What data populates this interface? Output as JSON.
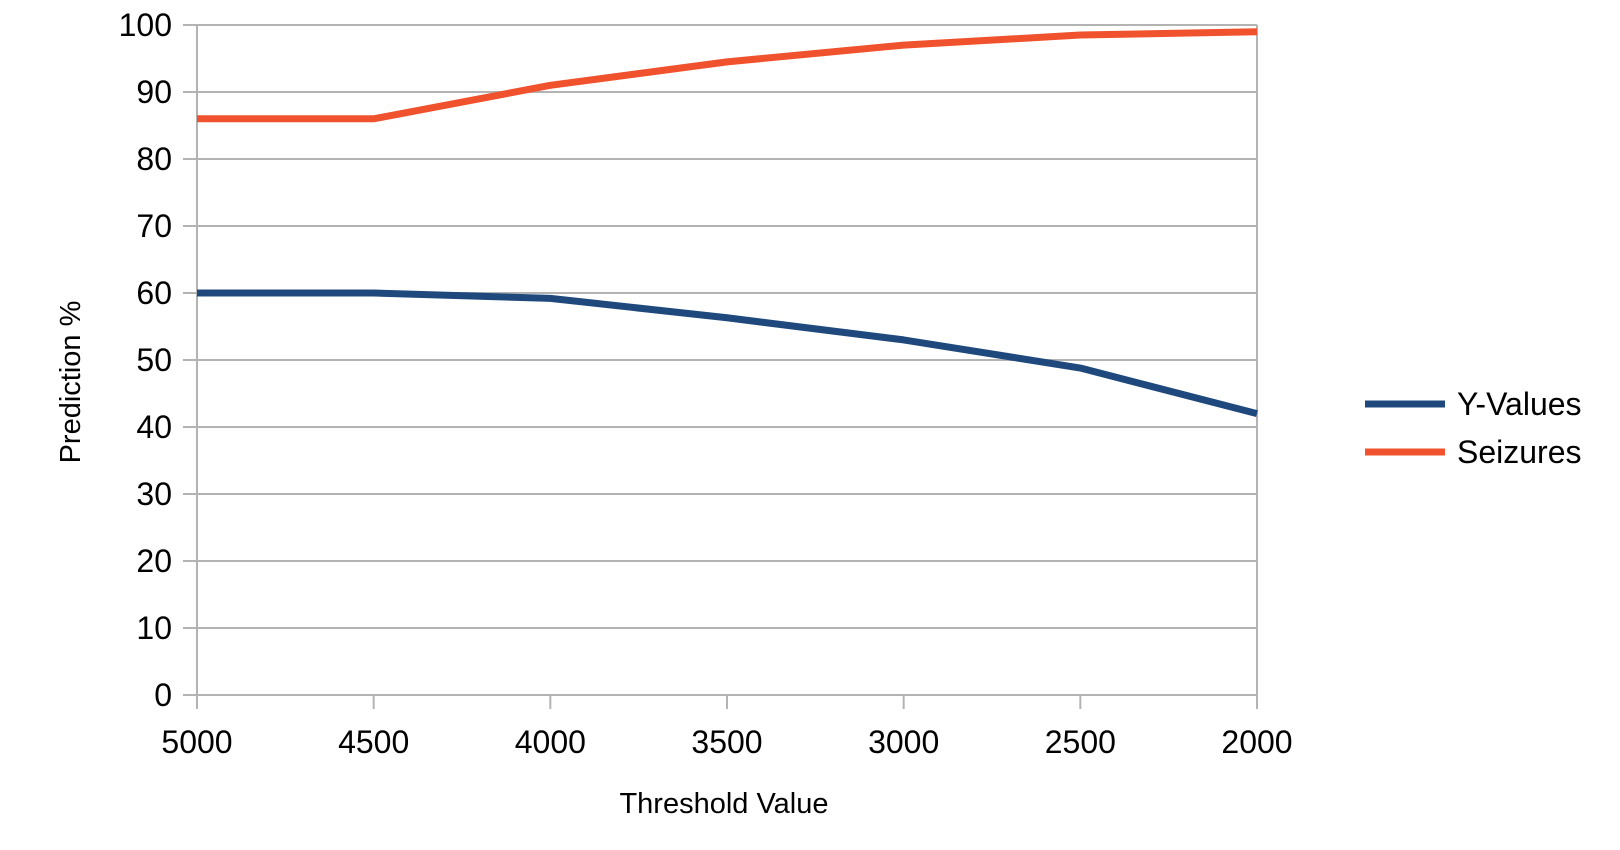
{
  "chart_data": {
    "type": "line",
    "title": "",
    "xlabel": "Threshold Value",
    "ylabel": "Prediction %",
    "categories": [
      "5000",
      "4500",
      "4000",
      "3500",
      "3000",
      "2500",
      "2000"
    ],
    "y_ticks": [
      "0",
      "10",
      "20",
      "30",
      "40",
      "50",
      "60",
      "70",
      "80",
      "90",
      "100"
    ],
    "ylim": [
      0,
      100
    ],
    "grid": true,
    "legend_position": "right",
    "series": [
      {
        "name": "Y-Values",
        "color": "#1f497d",
        "values": [
          60,
          60,
          59.2,
          56.3,
          53,
          48.8,
          42
        ]
      },
      {
        "name": "Seizures",
        "color": "#f0522d",
        "values": [
          86,
          86,
          91,
          94.5,
          97,
          98.5,
          99
        ]
      }
    ]
  }
}
